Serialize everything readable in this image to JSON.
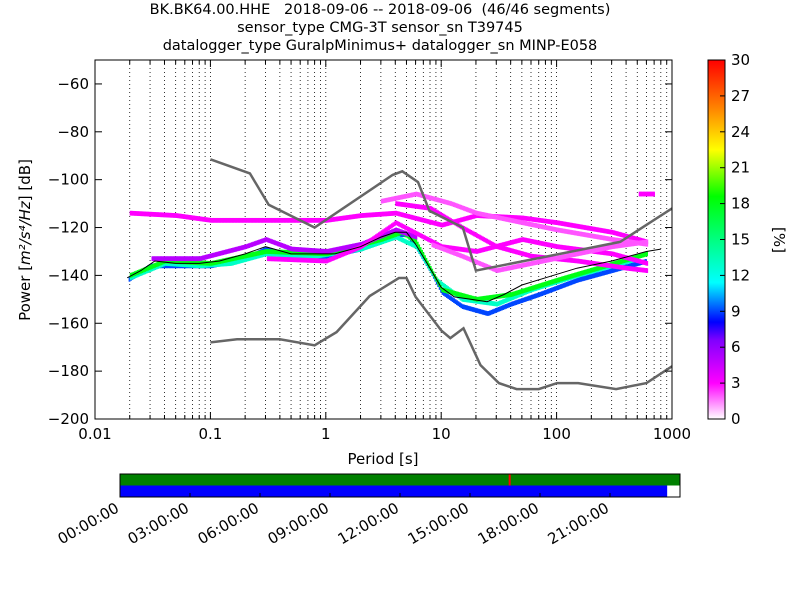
{
  "title_lines": [
    "BK.BK64.00.HHE   2018-09-06 -- 2018-09-06  (46/46 segments)",
    "sensor_type CMG-3T sensor_sn T39745",
    "datalogger_type GuralpMinimus+ datalogger_sn MINP-E058"
  ],
  "chart_data": {
    "type": "heatmap",
    "xlabel": "Period [s]",
    "ylabel": "Power [m²/s⁴/Hz] [dB]",
    "ylabel_parts": {
      "prefix": "Power [",
      "unit": "m²/s⁴/Hz",
      "suffix": "] [dB]"
    },
    "xscale": "log",
    "xlim": [
      0.01,
      1000
    ],
    "ylim": [
      -200,
      -50
    ],
    "xticks": [
      {
        "value": 0.01,
        "label": "0.01"
      },
      {
        "value": 0.1,
        "label": "0.1"
      },
      {
        "value": 1,
        "label": "1"
      },
      {
        "value": 10,
        "label": "10"
      },
      {
        "value": 100,
        "label": "100"
      },
      {
        "value": 1000,
        "label": "1000"
      }
    ],
    "yticks": [
      {
        "value": -60,
        "label": "−60"
      },
      {
        "value": -80,
        "label": "−80"
      },
      {
        "value": -100,
        "label": "−100"
      },
      {
        "value": -120,
        "label": "−120"
      },
      {
        "value": -140,
        "label": "−140"
      },
      {
        "value": -160,
        "label": "−160"
      },
      {
        "value": -180,
        "label": "−180"
      },
      {
        "value": -200,
        "label": "−200"
      }
    ],
    "grid": "vertical dotted",
    "colorbar": {
      "label": "[%]",
      "min": 0,
      "max": 30,
      "ticks": [
        {
          "value": 0,
          "label": "0"
        },
        {
          "value": 3,
          "label": "3"
        },
        {
          "value": 6,
          "label": "6"
        },
        {
          "value": 9,
          "label": "9"
        },
        {
          "value": 12,
          "label": "12"
        },
        {
          "value": 15,
          "label": "15"
        },
        {
          "value": 18,
          "label": "18"
        },
        {
          "value": 21,
          "label": "21"
        },
        {
          "value": 24,
          "label": "24"
        },
        {
          "value": 27,
          "label": "27"
        },
        {
          "value": 30,
          "label": "30"
        }
      ]
    },
    "noise_models": {
      "color": "#666666",
      "nhnm": [
        [
          0.1,
          -91.5
        ],
        [
          0.22,
          -97.4
        ],
        [
          0.32,
          -110.5
        ],
        [
          0.8,
          -120
        ],
        [
          3.8,
          -98
        ],
        [
          4.6,
          -96.5
        ],
        [
          6.3,
          -101
        ],
        [
          7.9,
          -113
        ],
        [
          15.4,
          -120
        ],
        [
          20,
          -138
        ],
        [
          354.8,
          -126
        ],
        [
          1000,
          -112
        ]
      ],
      "nlnm": [
        [
          0.1,
          -168
        ],
        [
          0.17,
          -166.7
        ],
        [
          0.4,
          -166.7
        ],
        [
          0.8,
          -169.2
        ],
        [
          1.24,
          -163.7
        ],
        [
          2.4,
          -148.6
        ],
        [
          4.3,
          -141.1
        ],
        [
          5.0,
          -141.1
        ],
        [
          6.0,
          -149
        ],
        [
          10,
          -163
        ],
        [
          12,
          -166.2
        ],
        [
          15.6,
          -162.1
        ],
        [
          21.9,
          -177.5
        ],
        [
          31.6,
          -185
        ],
        [
          45,
          -187.5
        ],
        [
          70,
          -187.5
        ],
        [
          101,
          -185
        ],
        [
          154,
          -185
        ],
        [
          328,
          -187.5
        ],
        [
          600,
          -185
        ],
        [
          1000,
          -178
        ]
      ]
    },
    "mean_curve": {
      "color": "#000000",
      "points": [
        [
          0.019,
          -141
        ],
        [
          0.025,
          -138
        ],
        [
          0.033,
          -134
        ],
        [
          0.05,
          -135
        ],
        [
          0.08,
          -135
        ],
        [
          0.12,
          -134
        ],
        [
          0.2,
          -131
        ],
        [
          0.3,
          -128
        ],
        [
          0.5,
          -131
        ],
        [
          0.8,
          -131
        ],
        [
          1.2,
          -131
        ],
        [
          2,
          -128
        ],
        [
          3,
          -124
        ],
        [
          4,
          -122
        ],
        [
          5,
          -122
        ],
        [
          6,
          -127
        ],
        [
          8,
          -137
        ],
        [
          10,
          -145
        ],
        [
          13,
          -149
        ],
        [
          18,
          -150
        ],
        [
          25,
          -151
        ],
        [
          35,
          -148
        ],
        [
          50,
          -144
        ],
        [
          80,
          -141
        ],
        [
          150,
          -137
        ],
        [
          300,
          -134
        ],
        [
          600,
          -130
        ],
        [
          800,
          -129
        ]
      ]
    },
    "psd_segments_bands": [
      {
        "level": 9,
        "points": [
          [
            0.019,
            -142
          ],
          [
            0.03,
            -136
          ],
          [
            0.05,
            -136
          ],
          [
            0.1,
            -136
          ],
          [
            0.2,
            -133
          ],
          [
            0.3,
            -129
          ],
          [
            0.5,
            -132
          ],
          [
            1,
            -132
          ],
          [
            2,
            -129
          ],
          [
            3,
            -125
          ],
          [
            4,
            -123
          ],
          [
            5,
            -123
          ],
          [
            6,
            -128
          ],
          [
            8,
            -138
          ],
          [
            10,
            -147
          ],
          [
            15,
            -153
          ],
          [
            25,
            -156
          ],
          [
            40,
            -152
          ],
          [
            70,
            -148
          ],
          [
            150,
            -142
          ],
          [
            300,
            -138
          ],
          [
            600,
            -134
          ]
        ]
      },
      {
        "level": 13,
        "points": [
          [
            0.02,
            -141
          ],
          [
            0.04,
            -135
          ],
          [
            0.08,
            -136
          ],
          [
            0.15,
            -135
          ],
          [
            0.3,
            -131
          ],
          [
            0.8,
            -132
          ],
          [
            2,
            -129
          ],
          [
            4,
            -124
          ],
          [
            6,
            -128
          ],
          [
            9,
            -142
          ],
          [
            15,
            -150
          ],
          [
            30,
            -152
          ],
          [
            60,
            -146
          ],
          [
            150,
            -140
          ],
          [
            500,
            -133
          ]
        ]
      },
      {
        "level": 18,
        "points": [
          [
            0.02,
            -140
          ],
          [
            0.04,
            -134
          ],
          [
            0.1,
            -135
          ],
          [
            0.3,
            -130
          ],
          [
            1,
            -131
          ],
          [
            3,
            -125
          ],
          [
            4.5,
            -122
          ],
          [
            6,
            -126
          ],
          [
            10,
            -146
          ],
          [
            20,
            -150
          ],
          [
            40,
            -148
          ],
          [
            100,
            -142
          ],
          [
            600,
            -131
          ]
        ]
      },
      {
        "level": 5,
        "points": [
          [
            0.03,
            -133
          ],
          [
            0.08,
            -133
          ],
          [
            0.2,
            -128
          ],
          [
            0.3,
            -125
          ],
          [
            0.5,
            -129
          ],
          [
            1,
            -130
          ],
          [
            2,
            -127
          ],
          [
            4,
            -121
          ],
          [
            6,
            -124
          ]
        ]
      },
      {
        "level": 3,
        "points": [
          [
            0.02,
            -114
          ],
          [
            0.05,
            -115
          ],
          [
            0.1,
            -117
          ],
          [
            0.3,
            -117
          ],
          [
            1,
            -117
          ],
          [
            2,
            -115
          ],
          [
            4,
            -114
          ],
          [
            10,
            -119
          ],
          [
            20,
            -115
          ],
          [
            50,
            -116
          ],
          [
            100,
            -118
          ],
          [
            300,
            -122
          ],
          [
            600,
            -126
          ]
        ]
      },
      {
        "level": 3,
        "points": [
          [
            0.3,
            -133
          ],
          [
            1,
            -134
          ],
          [
            2,
            -128
          ],
          [
            4,
            -118
          ],
          [
            10,
            -128
          ],
          [
            20,
            -130
          ],
          [
            50,
            -125
          ],
          [
            100,
            -128
          ],
          [
            300,
            -131
          ],
          [
            600,
            -135
          ]
        ]
      },
      {
        "level": 3,
        "points": [
          [
            4,
            -110
          ],
          [
            8,
            -112
          ],
          [
            15,
            -120
          ],
          [
            30,
            -128
          ],
          [
            60,
            -132
          ],
          [
            150,
            -134
          ],
          [
            400,
            -137
          ],
          [
            600,
            -138
          ]
        ]
      },
      {
        "level": 2,
        "points": [
          [
            3,
            -109
          ],
          [
            6,
            -106
          ],
          [
            12,
            -110
          ],
          [
            20,
            -114
          ],
          [
            50,
            -118
          ],
          [
            100,
            -121
          ],
          [
            300,
            -125
          ],
          [
            600,
            -127
          ]
        ]
      },
      {
        "level": 2,
        "points": [
          [
            8,
            -127
          ],
          [
            15,
            -132
          ],
          [
            30,
            -138
          ],
          [
            60,
            -135
          ],
          [
            150,
            -131
          ],
          [
            300,
            -128
          ],
          [
            600,
            -126
          ]
        ]
      },
      {
        "level": 3,
        "points": [
          [
            500,
            -106
          ],
          [
            600,
            -106
          ],
          [
            700,
            -106
          ]
        ]
      }
    ]
  },
  "timeline": {
    "ticks": [
      {
        "hour": 0,
        "label": "00:00:00"
      },
      {
        "hour": 3,
        "label": "03:00:00"
      },
      {
        "hour": 6,
        "label": "06:00:00"
      },
      {
        "hour": 9,
        "label": "09:00:00"
      },
      {
        "hour": 12,
        "label": "12:00:00"
      },
      {
        "hour": 15,
        "label": "15:00:00"
      },
      {
        "hour": 18,
        "label": "18:00:00"
      },
      {
        "hour": 21,
        "label": "21:00:00"
      }
    ],
    "range_hours": [
      0,
      24
    ],
    "data_coverage_hours": [
      0,
      24
    ],
    "data_color": "#008000",
    "psd_coverage_hours": [
      0,
      23.45
    ],
    "psd_color": "#0000ff",
    "gap_marker_hour": 16.7,
    "gap_marker_color": "#ff0000"
  }
}
